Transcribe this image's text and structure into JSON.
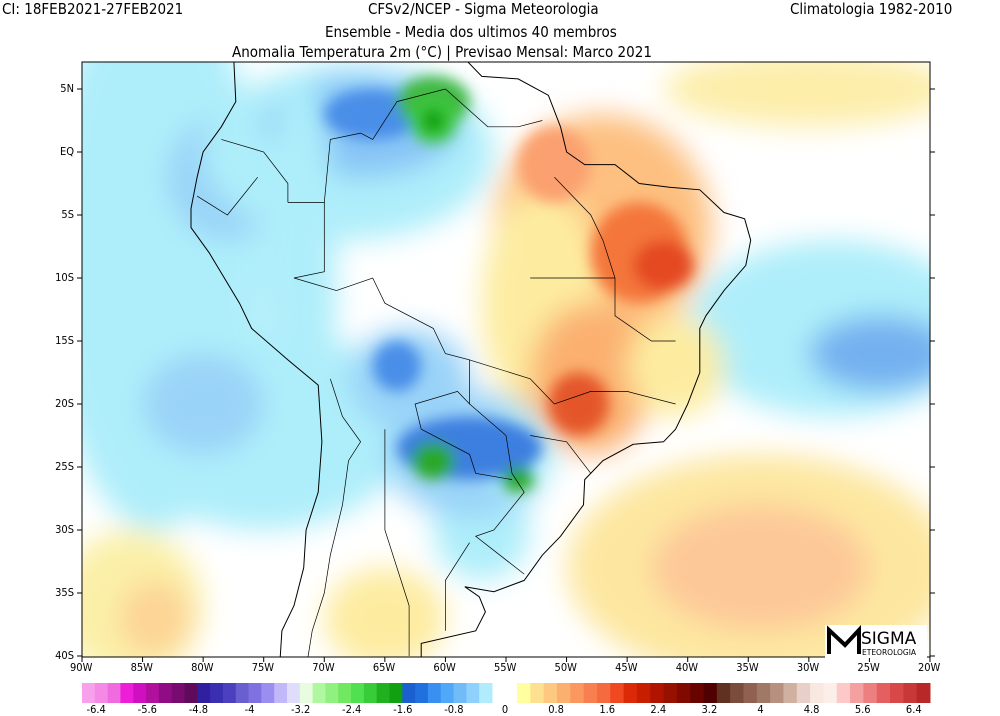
{
  "header": {
    "left": "CI: 18FEB2021-27FEB2021",
    "center": "CFSv2/NCEP - Sigma Meteorologia",
    "right": "Climatologia 1982-2010",
    "subtitle1": "Ensemble - Media dos ultimos 40 membros",
    "subtitle2": "Anomalia Temperatura 2m (°C) | Previsao Mensal: Marco 2021"
  },
  "map": {
    "lon_range": [
      -90,
      -20
    ],
    "lat_range": [
      -40,
      7
    ],
    "lat_labels": [
      {
        "lat": 5,
        "label": "5N"
      },
      {
        "lat": 0,
        "label": "EQ"
      },
      {
        "lat": -5,
        "label": "5S"
      },
      {
        "lat": -10,
        "label": "10S"
      },
      {
        "lat": -15,
        "label": "15S"
      },
      {
        "lat": -20,
        "label": "20S"
      },
      {
        "lat": -25,
        "label": "25S"
      },
      {
        "lat": -30,
        "label": "30S"
      },
      {
        "lat": -35,
        "label": "35S"
      },
      {
        "lat": -40,
        "label": "40S"
      }
    ],
    "lon_labels": [
      {
        "lon": -90,
        "label": "90W"
      },
      {
        "lon": -85,
        "label": "85W"
      },
      {
        "lon": -80,
        "label": "80W"
      },
      {
        "lon": -75,
        "label": "75W"
      },
      {
        "lon": -70,
        "label": "70W"
      },
      {
        "lon": -65,
        "label": "65W"
      },
      {
        "lon": -60,
        "label": "60W"
      },
      {
        "lon": -55,
        "label": "55W"
      },
      {
        "lon": -50,
        "label": "50W"
      },
      {
        "lon": -45,
        "label": "45W"
      },
      {
        "lon": -40,
        "label": "40W"
      },
      {
        "lon": -35,
        "label": "35W"
      },
      {
        "lon": -30,
        "label": "30W"
      },
      {
        "lon": -25,
        "label": "25W"
      },
      {
        "lon": -20,
        "label": "20W"
      }
    ]
  },
  "logo": {
    "text": "SIGMA",
    "subtext": "METEOROLOGIA"
  },
  "colorbar": {
    "tick_labels": [
      "-6.4",
      "-5.6",
      "-4.8",
      "-4",
      "-3.2",
      "-2.4",
      "-1.6",
      "-0.8",
      "0",
      "0.8",
      "1.6",
      "2.4",
      "3.2",
      "4",
      "4.8",
      "5.6",
      "6.4"
    ],
    "tick_values": [
      -6.4,
      -5.6,
      -4.8,
      -4,
      -3.2,
      -2.4,
      -1.6,
      -0.8,
      0,
      0.8,
      1.6,
      2.4,
      3.2,
      4,
      4.8,
      5.6,
      6.4
    ],
    "negative_colors": [
      "#f7a0ec",
      "#f58ae6",
      "#f06ae0",
      "#ec1ed8",
      "#d010c0",
      "#b0109c",
      "#900c84",
      "#780a70",
      "#600a5c",
      "#3020a0",
      "#3a2fb0",
      "#4a40c0",
      "#6a5fd0",
      "#7f72e0",
      "#9a8ff0",
      "#c0b8f8",
      "#e0dcfc",
      "#e8fce0",
      "#b0f8a0",
      "#90f080",
      "#70e860",
      "#50e050",
      "#38cc38",
      "#20b020",
      "#10a010",
      "#1a60d0",
      "#2070e0",
      "#3a90f0",
      "#50a8f8",
      "#70bcf8",
      "#90d0fc",
      "#b0ecfc"
    ],
    "positive_colors": [
      "#ffffa0",
      "#fde090",
      "#fdc880",
      "#fcb070",
      "#fa9860",
      "#f88050",
      "#f66a40",
      "#f04820",
      "#dc2a08",
      "#c81e00",
      "#b01400",
      "#981000",
      "#800a00",
      "#680400",
      "#500000",
      "#603020",
      "#7a4c3c",
      "#906050",
      "#a07868",
      "#b89080",
      "#d0b0a0",
      "#e8d0c8",
      "#f8e8e0",
      "#fceee8",
      "#fcc8c8",
      "#f4a0a0",
      "#ec8080",
      "#e46060",
      "#d84848",
      "#c83838",
      "#b82828"
    ]
  }
}
